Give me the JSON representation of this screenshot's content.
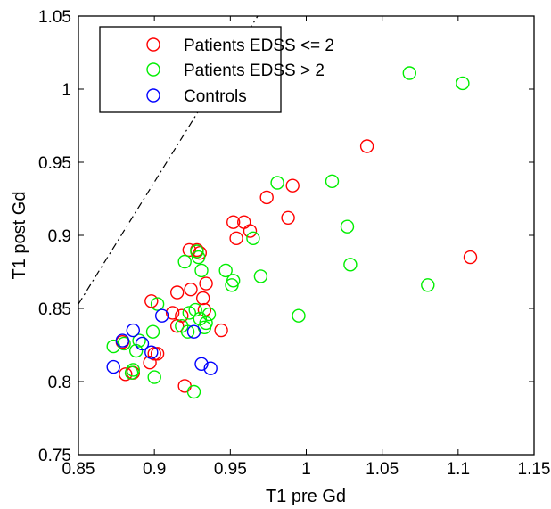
{
  "chart_data": {
    "type": "scatter",
    "xlabel": "T1 pre Gd",
    "ylabel": "T1 post Gd",
    "xlim": [
      0.85,
      1.15
    ],
    "ylim": [
      0.75,
      1.05
    ],
    "xticks": [
      "0.85",
      "0.9",
      "0.95",
      "1",
      "1.05",
      "1.1",
      "1.15"
    ],
    "yticks": [
      "0.75",
      "0.8",
      "0.85",
      "0.9",
      "0.95",
      "1",
      "1.05"
    ],
    "grid": false,
    "legend_position": "top-left",
    "reference_line": {
      "style": "dash-dot",
      "from": [
        0.85,
        0.853
      ],
      "to": [
        0.968,
        1.05
      ]
    },
    "series": [
      {
        "name": "Patients EDSS <= 2",
        "color": "#ff0000",
        "points": [
          [
            0.879,
            0.827
          ],
          [
            0.881,
            0.805
          ],
          [
            0.886,
            0.806
          ],
          [
            0.897,
            0.813
          ],
          [
            0.898,
            0.855
          ],
          [
            0.9,
            0.819
          ],
          [
            0.902,
            0.819
          ],
          [
            0.912,
            0.847
          ],
          [
            0.915,
            0.861
          ],
          [
            0.915,
            0.838
          ],
          [
            0.918,
            0.845
          ],
          [
            0.92,
            0.797
          ],
          [
            0.923,
            0.89
          ],
          [
            0.924,
            0.863
          ],
          [
            0.928,
            0.89
          ],
          [
            0.93,
            0.888
          ],
          [
            0.932,
            0.857
          ],
          [
            0.933,
            0.849
          ],
          [
            0.934,
            0.867
          ],
          [
            0.944,
            0.835
          ],
          [
            0.952,
            0.909
          ],
          [
            0.954,
            0.898
          ],
          [
            0.959,
            0.909
          ],
          [
            0.963,
            0.903
          ],
          [
            0.974,
            0.926
          ],
          [
            0.988,
            0.912
          ],
          [
            0.991,
            0.934
          ],
          [
            1.04,
            0.961
          ],
          [
            1.108,
            0.885
          ]
        ]
      },
      {
        "name": "Patients EDSS > 2",
        "color": "#00ee00",
        "points": [
          [
            0.873,
            0.824
          ],
          [
            0.88,
            0.826
          ],
          [
            0.885,
            0.806
          ],
          [
            0.886,
            0.808
          ],
          [
            0.888,
            0.821
          ],
          [
            0.89,
            0.828
          ],
          [
            0.899,
            0.834
          ],
          [
            0.9,
            0.803
          ],
          [
            0.902,
            0.853
          ],
          [
            0.918,
            0.838
          ],
          [
            0.92,
            0.882
          ],
          [
            0.922,
            0.834
          ],
          [
            0.923,
            0.847
          ],
          [
            0.926,
            0.793
          ],
          [
            0.927,
            0.849
          ],
          [
            0.928,
            0.889
          ],
          [
            0.929,
            0.885
          ],
          [
            0.93,
            0.843
          ],
          [
            0.931,
            0.876
          ],
          [
            0.933,
            0.837
          ],
          [
            0.934,
            0.84
          ],
          [
            0.936,
            0.846
          ],
          [
            0.947,
            0.876
          ],
          [
            0.951,
            0.866
          ],
          [
            0.952,
            0.869
          ],
          [
            0.965,
            0.898
          ],
          [
            0.97,
            0.872
          ],
          [
            0.981,
            0.936
          ],
          [
            0.995,
            0.845
          ],
          [
            1.017,
            0.937
          ],
          [
            1.027,
            0.906
          ],
          [
            1.029,
            0.88
          ],
          [
            1.068,
            1.011
          ],
          [
            1.08,
            0.866
          ],
          [
            1.103,
            1.004
          ]
        ]
      },
      {
        "name": "Controls",
        "color": "#0000ff",
        "points": [
          [
            0.873,
            0.81
          ],
          [
            0.879,
            0.828
          ],
          [
            0.886,
            0.835
          ],
          [
            0.892,
            0.826
          ],
          [
            0.898,
            0.82
          ],
          [
            0.905,
            0.845
          ],
          [
            0.926,
            0.834
          ],
          [
            0.931,
            0.812
          ],
          [
            0.937,
            0.809
          ]
        ]
      }
    ]
  }
}
